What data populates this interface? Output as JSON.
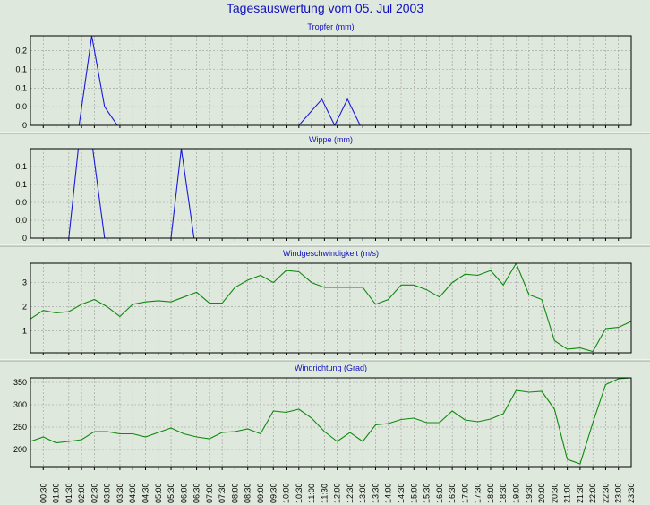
{
  "page": {
    "title": "Tagesauswertung vom 05. Jul 2003"
  },
  "x_labels": [
    "00:30",
    "01:00",
    "01:30",
    "02:00",
    "02:30",
    "03:00",
    "03:30",
    "04:00",
    "04:30",
    "05:00",
    "05:30",
    "06:00",
    "06:30",
    "07:00",
    "07:30",
    "08:00",
    "08:30",
    "09:00",
    "09:30",
    "10:00",
    "10:30",
    "11:00",
    "11:30",
    "12:00",
    "12:30",
    "13:00",
    "13:30",
    "14:00",
    "14:30",
    "15:00",
    "15:30",
    "16:00",
    "16:30",
    "17:00",
    "17:30",
    "18:00",
    "18:30",
    "19:00",
    "19:30",
    "20:00",
    "20:30",
    "21:00",
    "21:30",
    "22:00",
    "22:30",
    "23:00",
    "23:30"
  ],
  "chart_data": [
    {
      "type": "line",
      "title": "Tropfer (mm)",
      "color": "#1a1adb",
      "y_ticks": [
        {
          "v": 0,
          "label": "0"
        },
        {
          "v": 0.05,
          "label": "0,0"
        },
        {
          "v": 0.1,
          "label": "0,1"
        },
        {
          "v": 0.15,
          "label": "0,1"
        },
        {
          "v": 0.2,
          "label": "0,2"
        }
      ],
      "ylim": [
        0,
        0.24
      ],
      "x": [
        0.5,
        1.5,
        1.9,
        2.4,
        2.9,
        3.4,
        3.9,
        10.5,
        11.4,
        11.9,
        12.4,
        12.9,
        23.5
      ],
      "y": [
        0,
        0,
        0,
        0.24,
        0.05,
        0,
        0,
        0,
        0.07,
        0,
        0.07,
        0,
        0
      ]
    },
    {
      "type": "line",
      "title": "Wippe (mm)",
      "color": "#1a1adb",
      "y_ticks": [
        {
          "v": 0,
          "label": "0"
        },
        {
          "v": 0.05,
          "label": "0,0"
        },
        {
          "v": 0.1,
          "label": "0,0"
        },
        {
          "v": 0.15,
          "label": "0,1"
        },
        {
          "v": 0.2,
          "label": "0,1"
        }
      ],
      "ylim": [
        0,
        0.25
      ],
      "x": [
        0.5,
        1.5,
        1.9,
        2.4,
        2.9,
        5.5,
        5.9,
        6.4,
        23.5
      ],
      "y": [
        0,
        0,
        0.27,
        0.27,
        0,
        0,
        0.25,
        0,
        0
      ]
    },
    {
      "type": "line",
      "title": "Windgeschwindigkeit (m/s)",
      "color": "#0e8a0e",
      "y_ticks": [
        {
          "v": 1,
          "label": "1"
        },
        {
          "v": 2,
          "label": "2"
        },
        {
          "v": 3,
          "label": "3"
        }
      ],
      "ylim": [
        0.1,
        3.8
      ],
      "x": [
        0,
        0.5,
        1,
        1.5,
        2,
        2.5,
        3,
        3.5,
        4,
        4.5,
        5,
        5.5,
        6,
        6.5,
        7,
        7.5,
        8,
        8.5,
        9,
        9.5,
        10,
        10.5,
        11,
        11.5,
        12,
        12.5,
        13,
        13.5,
        14,
        14.5,
        15,
        15.5,
        16,
        16.5,
        17,
        17.5,
        18,
        18.5,
        19,
        19.5,
        20,
        20.5,
        21,
        21.5,
        22,
        22.5,
        23,
        23.5
      ],
      "y": [
        1.5,
        1.85,
        1.75,
        1.8,
        2.1,
        2.3,
        2.0,
        1.6,
        2.1,
        2.2,
        2.25,
        2.2,
        2.4,
        2.6,
        2.15,
        2.15,
        2.8,
        3.1,
        3.3,
        3.0,
        3.5,
        3.45,
        3.0,
        2.8,
        2.8,
        2.8,
        2.8,
        2.1,
        2.3,
        2.9,
        2.9,
        2.7,
        2.4,
        3.0,
        3.35,
        3.3,
        3.5,
        2.9,
        3.8,
        2.5,
        2.3,
        0.6,
        0.25,
        0.3,
        0.15,
        1.1,
        1.15,
        1.4
      ]
    },
    {
      "type": "line",
      "title": "Windrichtung (Grad)",
      "color": "#0e8a0e",
      "y_ticks": [
        {
          "v": 200,
          "label": "200"
        },
        {
          "v": 250,
          "label": "250"
        },
        {
          "v": 300,
          "label": "300"
        },
        {
          "v": 350,
          "label": "350"
        }
      ],
      "ylim": [
        160,
        360
      ],
      "x": [
        0,
        0.5,
        1,
        1.5,
        2,
        2.5,
        3,
        3.5,
        4,
        4.5,
        5,
        5.5,
        6,
        6.5,
        7,
        7.5,
        8,
        8.5,
        9,
        9.5,
        10,
        10.5,
        11,
        11.5,
        12,
        12.5,
        13,
        13.5,
        14,
        14.5,
        15,
        15.5,
        16,
        16.5,
        17,
        17.5,
        18,
        18.5,
        19,
        19.5,
        20,
        20.5,
        21,
        21.5,
        22,
        22.5,
        23,
        23.5
      ],
      "y": [
        218,
        228,
        215,
        218,
        222,
        240,
        240,
        235,
        235,
        228,
        238,
        248,
        235,
        228,
        224,
        238,
        240,
        246,
        235,
        286,
        283,
        290,
        270,
        240,
        218,
        238,
        218,
        255,
        258,
        267,
        270,
        260,
        260,
        286,
        266,
        262,
        268,
        280,
        332,
        328,
        330,
        290,
        178,
        168,
        260,
        345,
        358,
        360
      ]
    }
  ]
}
